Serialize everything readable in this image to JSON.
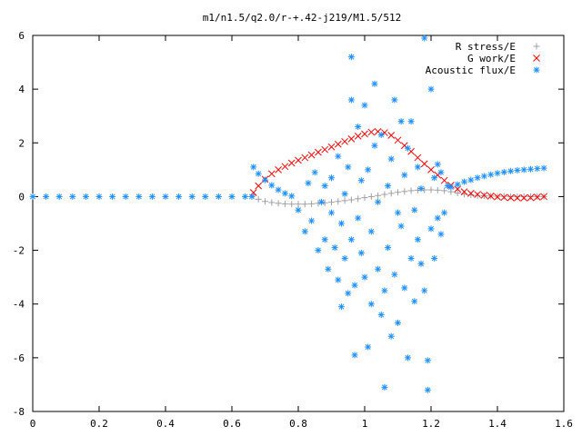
{
  "chart_data": {
    "type": "scatter",
    "title": "m1/n1.5/q2.0/r-+.42-j219/M1.5/512",
    "xlabel": "",
    "ylabel": "",
    "xlim": [
      0,
      1.6
    ],
    "ylim": [
      -8,
      6
    ],
    "x_ticks": [
      "0",
      "0.2",
      "0.4",
      "0.6",
      "0.8",
      "1",
      "1.2",
      "1.4",
      "1.6"
    ],
    "y_ticks": [
      "-8",
      "-6",
      "-4",
      "-2",
      "0",
      "2",
      "4",
      "6"
    ],
    "grid": false,
    "legend_position": "top-right",
    "series": [
      {
        "name": "R stress/E",
        "marker": "+",
        "color": "#a0a0a0",
        "points": [
          [
            0.665,
            0.05
          ],
          [
            0.68,
            -0.1
          ],
          [
            0.7,
            -0.18
          ],
          [
            0.72,
            -0.22
          ],
          [
            0.74,
            -0.25
          ],
          [
            0.76,
            -0.27
          ],
          [
            0.78,
            -0.28
          ],
          [
            0.8,
            -0.28
          ],
          [
            0.82,
            -0.28
          ],
          [
            0.84,
            -0.27
          ],
          [
            0.86,
            -0.25
          ],
          [
            0.88,
            -0.23
          ],
          [
            0.9,
            -0.21
          ],
          [
            0.92,
            -0.18
          ],
          [
            0.94,
            -0.15
          ],
          [
            0.96,
            -0.12
          ],
          [
            0.98,
            -0.08
          ],
          [
            1.0,
            -0.04
          ],
          [
            1.02,
            0.0
          ],
          [
            1.04,
            0.04
          ],
          [
            1.06,
            0.08
          ],
          [
            1.08,
            0.12
          ],
          [
            1.1,
            0.16
          ],
          [
            1.12,
            0.19
          ],
          [
            1.14,
            0.22
          ],
          [
            1.16,
            0.24
          ],
          [
            1.18,
            0.25
          ],
          [
            1.2,
            0.25
          ],
          [
            1.22,
            0.24
          ],
          [
            1.24,
            0.22
          ],
          [
            1.26,
            0.18
          ],
          [
            1.28,
            0.13
          ],
          [
            1.3,
            0.09
          ],
          [
            1.32,
            0.06
          ],
          [
            1.34,
            0.04
          ],
          [
            1.36,
            0.03
          ],
          [
            1.38,
            0.02
          ],
          [
            1.4,
            0.01
          ],
          [
            1.42,
            0.01
          ],
          [
            1.44,
            0.0
          ],
          [
            1.46,
            0.0
          ],
          [
            1.48,
            0.0
          ],
          [
            1.5,
            0.0
          ],
          [
            1.52,
            0.0
          ],
          [
            1.54,
            0.0
          ]
        ]
      },
      {
        "name": "G work/E",
        "marker": "x",
        "color": "#ff0000",
        "points": [
          [
            0.665,
            0.15
          ],
          [
            0.68,
            0.4
          ],
          [
            0.7,
            0.65
          ],
          [
            0.72,
            0.85
          ],
          [
            0.74,
            1.0
          ],
          [
            0.76,
            1.12
          ],
          [
            0.78,
            1.25
          ],
          [
            0.8,
            1.35
          ],
          [
            0.82,
            1.45
          ],
          [
            0.84,
            1.55
          ],
          [
            0.86,
            1.65
          ],
          [
            0.88,
            1.75
          ],
          [
            0.9,
            1.85
          ],
          [
            0.92,
            1.95
          ],
          [
            0.94,
            2.05
          ],
          [
            0.96,
            2.15
          ],
          [
            0.98,
            2.25
          ],
          [
            1.0,
            2.33
          ],
          [
            1.02,
            2.4
          ],
          [
            1.04,
            2.42
          ],
          [
            1.06,
            2.38
          ],
          [
            1.08,
            2.28
          ],
          [
            1.1,
            2.1
          ],
          [
            1.12,
            1.9
          ],
          [
            1.14,
            1.68
          ],
          [
            1.16,
            1.45
          ],
          [
            1.18,
            1.22
          ],
          [
            1.2,
            1.0
          ],
          [
            1.22,
            0.8
          ],
          [
            1.24,
            0.6
          ],
          [
            1.26,
            0.42
          ],
          [
            1.28,
            0.28
          ],
          [
            1.3,
            0.18
          ],
          [
            1.32,
            0.12
          ],
          [
            1.34,
            0.08
          ],
          [
            1.36,
            0.05
          ],
          [
            1.38,
            0.02
          ],
          [
            1.4,
            -0.01
          ],
          [
            1.42,
            -0.03
          ],
          [
            1.44,
            -0.04
          ],
          [
            1.46,
            -0.05
          ],
          [
            1.48,
            -0.05
          ],
          [
            1.5,
            -0.04
          ],
          [
            1.52,
            -0.02
          ],
          [
            1.54,
            0.0
          ]
        ]
      },
      {
        "name": "Acoustic flux/E",
        "marker": "*",
        "color": "#1e90ff",
        "points": [
          [
            0.0,
            0.0
          ],
          [
            0.04,
            0.0
          ],
          [
            0.08,
            0.0
          ],
          [
            0.12,
            0.0
          ],
          [
            0.16,
            0.0
          ],
          [
            0.2,
            0.0
          ],
          [
            0.24,
            0.0
          ],
          [
            0.28,
            0.0
          ],
          [
            0.32,
            0.0
          ],
          [
            0.36,
            0.0
          ],
          [
            0.4,
            0.0
          ],
          [
            0.44,
            0.0
          ],
          [
            0.48,
            0.0
          ],
          [
            0.52,
            0.0
          ],
          [
            0.56,
            0.0
          ],
          [
            0.6,
            0.0
          ],
          [
            0.64,
            0.0
          ],
          [
            0.66,
            0.0
          ],
          [
            0.665,
            1.1
          ],
          [
            0.68,
            0.85
          ],
          [
            0.7,
            0.62
          ],
          [
            0.72,
            0.42
          ],
          [
            0.74,
            0.25
          ],
          [
            0.76,
            0.12
          ],
          [
            0.78,
            0.02
          ],
          [
            1.26,
            0.35
          ],
          [
            1.28,
            0.45
          ],
          [
            1.3,
            0.55
          ],
          [
            1.32,
            0.62
          ],
          [
            1.34,
            0.7
          ],
          [
            1.36,
            0.76
          ],
          [
            1.38,
            0.82
          ],
          [
            1.4,
            0.87
          ],
          [
            1.42,
            0.91
          ],
          [
            1.44,
            0.95
          ],
          [
            1.46,
            0.98
          ],
          [
            1.48,
            1.0
          ],
          [
            1.5,
            1.02
          ],
          [
            1.52,
            1.04
          ],
          [
            1.54,
            1.06
          ],
          [
            0.8,
            -0.5
          ],
          [
            0.82,
            -1.3
          ],
          [
            0.83,
            0.5
          ],
          [
            0.84,
            -0.9
          ],
          [
            0.85,
            0.9
          ],
          [
            0.86,
            -2.0
          ],
          [
            0.87,
            -0.2
          ],
          [
            0.88,
            0.4
          ],
          [
            0.88,
            -1.6
          ],
          [
            0.89,
            -2.7
          ],
          [
            0.9,
            0.7
          ],
          [
            0.9,
            -0.6
          ],
          [
            0.91,
            -1.9
          ],
          [
            0.92,
            1.5
          ],
          [
            0.92,
            -3.1
          ],
          [
            0.93,
            -1.0
          ],
          [
            0.93,
            -4.1
          ],
          [
            0.94,
            -2.3
          ],
          [
            0.94,
            0.1
          ],
          [
            0.95,
            -3.6
          ],
          [
            0.95,
            1.1
          ],
          [
            0.96,
            -1.6
          ],
          [
            0.96,
            3.6
          ],
          [
            0.96,
            5.2
          ],
          [
            0.97,
            -5.9
          ],
          [
            0.97,
            -3.3
          ],
          [
            0.98,
            -0.8
          ],
          [
            0.98,
            2.6
          ],
          [
            0.99,
            -2.1
          ],
          [
            0.99,
            0.6
          ],
          [
            1.0,
            -3.0
          ],
          [
            1.0,
            3.4
          ],
          [
            1.01,
            -5.6
          ],
          [
            1.01,
            1.0
          ],
          [
            1.02,
            -1.3
          ],
          [
            1.02,
            -4.0
          ],
          [
            1.03,
            1.9
          ],
          [
            1.03,
            4.2
          ],
          [
            1.04,
            -2.7
          ],
          [
            1.04,
            -0.2
          ],
          [
            1.05,
            -4.4
          ],
          [
            1.05,
            2.3
          ],
          [
            1.06,
            -3.5
          ],
          [
            1.06,
            -7.1
          ],
          [
            1.07,
            0.4
          ],
          [
            1.07,
            -1.9
          ],
          [
            1.08,
            -5.2
          ],
          [
            1.08,
            1.4
          ],
          [
            1.09,
            -2.9
          ],
          [
            1.09,
            3.6
          ],
          [
            1.1,
            -0.6
          ],
          [
            1.1,
            -4.7
          ],
          [
            1.11,
            2.8
          ],
          [
            1.11,
            -1.1
          ],
          [
            1.12,
            -3.4
          ],
          [
            1.12,
            0.8
          ],
          [
            1.13,
            -6.0
          ],
          [
            1.13,
            1.8
          ],
          [
            1.14,
            -2.3
          ],
          [
            1.14,
            2.8
          ],
          [
            1.15,
            -0.5
          ],
          [
            1.15,
            -3.9
          ],
          [
            1.16,
            1.1
          ],
          [
            1.16,
            -1.6
          ],
          [
            1.17,
            -2.5
          ],
          [
            1.17,
            0.3
          ],
          [
            1.18,
            -3.5
          ],
          [
            1.18,
            5.9
          ],
          [
            1.19,
            -7.2
          ],
          [
            1.19,
            -6.1
          ],
          [
            1.2,
            -1.2
          ],
          [
            1.2,
            4.0
          ],
          [
            1.21,
            0.7
          ],
          [
            1.21,
            -2.3
          ],
          [
            1.22,
            -0.8
          ],
          [
            1.22,
            1.2
          ],
          [
            1.23,
            -1.4
          ],
          [
            1.23,
            0.9
          ],
          [
            1.24,
            -0.6
          ],
          [
            1.25,
            0.4
          ]
        ]
      }
    ]
  }
}
